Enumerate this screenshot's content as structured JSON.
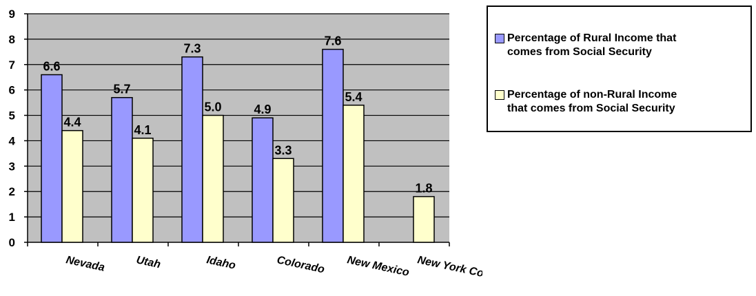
{
  "chart_data": {
    "type": "bar",
    "categories": [
      "Nevada",
      "Utah",
      "Idaho",
      "Colorado",
      "New Mexico",
      "New York Co., Ny"
    ],
    "series": [
      {
        "name": "Percentage of Rural Income that comes from Social Security",
        "values": [
          6.6,
          5.7,
          7.3,
          4.9,
          7.6,
          null
        ],
        "labels": [
          "6.6",
          "5.7",
          "7.3",
          "4.9",
          "7.6",
          ""
        ],
        "color": "#9999ff"
      },
      {
        "name": "Percentage of non-Rural Income that comes from Social Security",
        "values": [
          4.4,
          4.1,
          5.0,
          3.3,
          5.4,
          1.8
        ],
        "labels": [
          "4.4",
          "4.1",
          "5.0",
          "3.3",
          "5.4",
          "1.8"
        ],
        "color": "#ffffcc"
      }
    ],
    "yticks": [
      "0",
      "1",
      "2",
      "3",
      "4",
      "5",
      "6",
      "7",
      "8",
      "9"
    ],
    "ylim": [
      0,
      9
    ],
    "grid": true,
    "plot_background": "#c0c0c0",
    "legend_position": "top-right"
  },
  "legend": {
    "series1": "Percentage of Rural Income that\ncomes from Social Security",
    "series2": "Percentage of non-Rural Income\nthat comes from Social Security"
  }
}
